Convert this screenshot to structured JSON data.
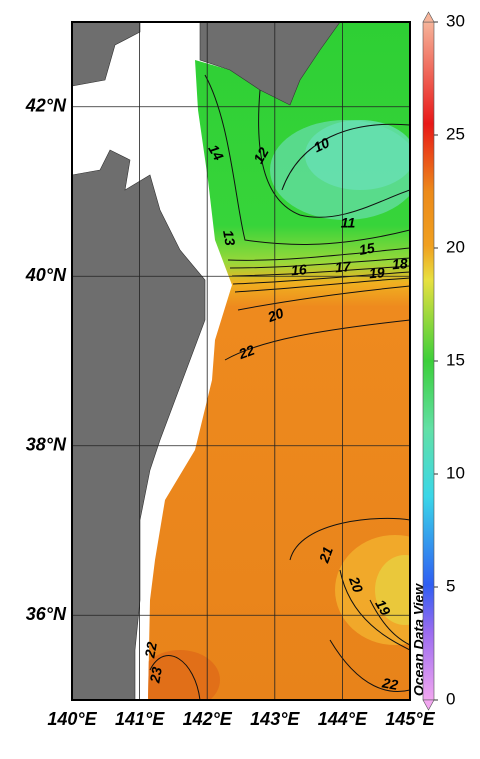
{
  "map": {
    "lon_ticks": [
      {
        "value": 140,
        "label": "140°E"
      },
      {
        "value": 141,
        "label": "141°E"
      },
      {
        "value": 142,
        "label": "142°E"
      },
      {
        "value": 143,
        "label": "143°E"
      },
      {
        "value": 144,
        "label": "144°E"
      },
      {
        "value": 145,
        "label": "145°E"
      }
    ],
    "lat_ticks": [
      {
        "value": 36,
        "label": "36°N"
      },
      {
        "value": 38,
        "label": "38°N"
      },
      {
        "value": 40,
        "label": "40°N"
      },
      {
        "value": 42,
        "label": "42°N"
      }
    ],
    "lonlim": [
      140,
      145
    ],
    "latlim": [
      35,
      43
    ],
    "contour_labels": [
      14,
      12,
      10,
      13,
      11,
      15,
      16,
      17,
      19,
      18,
      20,
      22,
      21,
      20,
      19,
      22,
      22,
      23
    ],
    "colorbar": {
      "lim": [
        0,
        30
      ],
      "ticks": [
        0,
        5,
        10,
        15,
        20,
        25,
        30
      ]
    },
    "credit": "Ocean Data View"
  }
}
